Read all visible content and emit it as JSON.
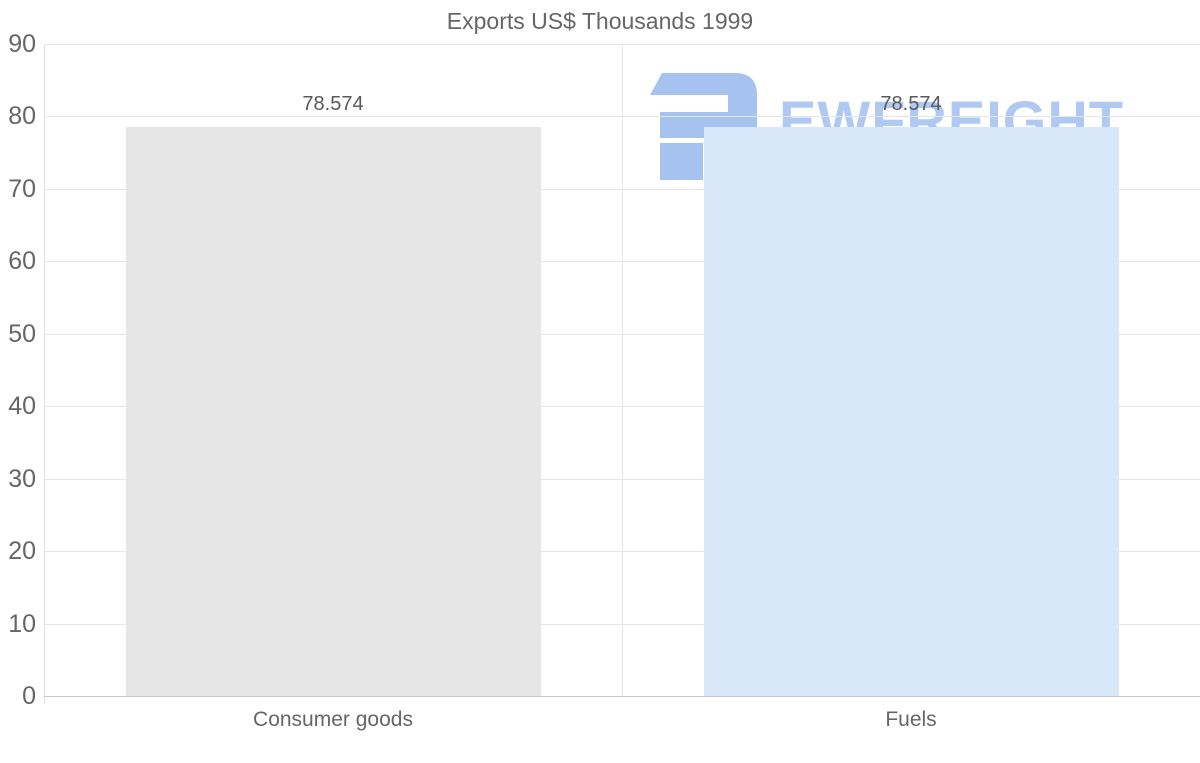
{
  "chart_data": {
    "type": "bar",
    "title": "Exports US$ Thousands 1999",
    "categories": [
      "Consumer goods",
      "Fuels"
    ],
    "values": [
      78.574,
      78.574
    ],
    "value_labels": [
      "78.574",
      "78.574"
    ],
    "series_colors": [
      "#e6e6e6",
      "#d9e7fb"
    ],
    "ylim": [
      0,
      90
    ],
    "yticks": [
      0,
      10,
      20,
      30,
      40,
      50,
      60,
      70,
      80,
      90
    ],
    "grid": true,
    "legend_position": "none",
    "xlabel": "",
    "ylabel": ""
  },
  "watermark": {
    "text": "EWFREIGHT",
    "logo_icon": "blocky-2-logo",
    "text_color": "#b0c9f2",
    "logo_color": "#a6c3ef"
  },
  "theme": {
    "background": "#ffffff",
    "title_color": "#666666",
    "axis_label_color": "#666666",
    "value_label_color": "#595959",
    "gridline_color": "#e6e6e6",
    "axis_line_color": "#c9c9c9"
  }
}
